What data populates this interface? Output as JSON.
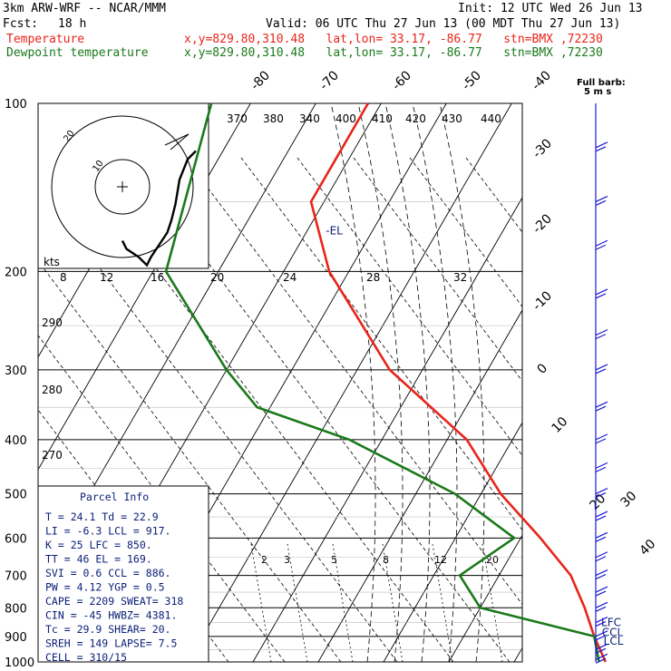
{
  "header": {
    "model": "3km ARW-WRF -- NCAR/MMM",
    "init": "Init: 12 UTC Wed 26 Jun 13",
    "fcst_label": "Fcst:",
    "fcst_value": "18 h",
    "valid": "Valid: 06 UTC Thu 27 Jun 13 (00 MDT Thu 27 Jun 13)",
    "temp_label": "Temperature",
    "dew_label": "Dewpoint temperature",
    "location": "x,y=829.80,310.48   lat,lon= 33.17, -86.77   stn=BMX ,72230"
  },
  "colors": {
    "temperature": "#e8251a",
    "dewpoint": "#1a7a1a",
    "wind": "#1a1ad0",
    "navy": "#0a1e78",
    "skew": "#000000"
  },
  "chart_data": {
    "type": "line",
    "title": "Skew-T log-P sounding",
    "pressure_levels": [
      100,
      200,
      300,
      400,
      500,
      600,
      700,
      800,
      900,
      1000
    ],
    "isotherm_labels": [
      "-80",
      "-70",
      "-60",
      "-50",
      "-40",
      "-30",
      "-20",
      "-10",
      "0",
      "10",
      "20",
      "30",
      "40"
    ],
    "theta_labels": [
      "370",
      "380",
      "340",
      "400",
      "410",
      "420",
      "430",
      "440"
    ],
    "theta_left_labels": [
      "290",
      "280",
      "270"
    ],
    "mixing_ratio_labels": [
      "2",
      "3",
      "5",
      "8",
      "12",
      "20"
    ],
    "series": [
      {
        "name": "Temperature",
        "points": [
          [
            100,
            -62
          ],
          [
            150,
            -62
          ],
          [
            200,
            -53
          ],
          [
            300,
            -35
          ],
          [
            400,
            -17
          ],
          [
            500,
            -7
          ],
          [
            600,
            3
          ],
          [
            700,
            11
          ],
          [
            800,
            16
          ],
          [
            900,
            20
          ],
          [
            1000,
            24
          ]
        ]
      },
      {
        "name": "Dewpoint temperature",
        "points": [
          [
            100,
            -86
          ],
          [
            200,
            -78
          ],
          [
            300,
            -60
          ],
          [
            350,
            -52
          ],
          [
            400,
            -35
          ],
          [
            500,
            -14
          ],
          [
            600,
            -1
          ],
          [
            700,
            -6
          ],
          [
            800,
            0
          ],
          [
            900,
            20
          ],
          [
            1000,
            23
          ]
        ]
      }
    ],
    "annotations": [
      {
        "text": "-EL",
        "p": 169,
        "t": -58
      },
      {
        "text": "LFC",
        "p": 850,
        "t": 19
      },
      {
        "text": "CCL",
        "p": 886,
        "t": 20
      },
      {
        "text": "LCL",
        "p": 917,
        "t": 21
      }
    ]
  },
  "hodograph": {
    "kts_label": "kts",
    "speed_labels": [
      "8",
      "12",
      "16",
      "20",
      "24",
      "28",
      "32"
    ],
    "ring_labels": [
      "10",
      "20"
    ],
    "path": [
      [
        0,
        -1
      ],
      [
        1,
        -3
      ],
      [
        4,
        -5
      ],
      [
        6,
        -7
      ],
      [
        7,
        -5
      ],
      [
        9,
        -2
      ],
      [
        11,
        1
      ],
      [
        12,
        4
      ],
      [
        13,
        8
      ],
      [
        14,
        14
      ],
      [
        16,
        19
      ],
      [
        18,
        21
      ]
    ]
  },
  "barbs": {
    "label_top": "Full barb:",
    "label_bottom": "5 m s",
    "levels": [
      120,
      150,
      180,
      220,
      260,
      300,
      350,
      400,
      450,
      500,
      550,
      600,
      650,
      700,
      750,
      800,
      850,
      900,
      950,
      990
    ]
  },
  "parcel_info": {
    "title": "Parcel Info",
    "rows": [
      "T  =    24.1  Td =  22.9",
      "LI =    -6.3  LCL =  917.",
      "K  =     25  LFC =  850.",
      "TT =     46  EL  =  169.",
      "SVI =    0.6  CCL =  886.",
      "PW =   4.12  YGP =   0.5",
      "CAPE =  2209  SWEAT=  318",
      "CIN =    -45  HWBZ= 4381.",
      "Tc =   29.9  SHEAR=  20.",
      "SREH =   149  LAPSE=  7.5",
      "CELL = 310/15"
    ]
  }
}
